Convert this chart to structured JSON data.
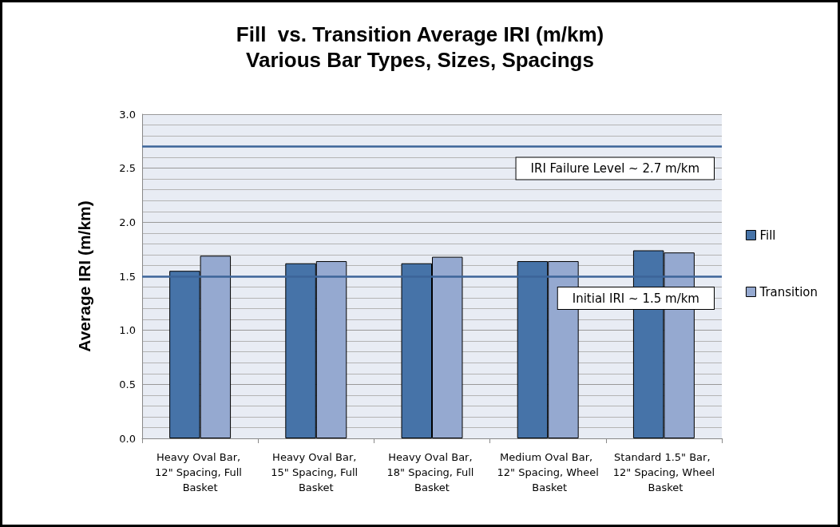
{
  "chart_data": {
    "type": "bar",
    "title": "Fill  vs. Transition Average IRI (m/km)",
    "subtitle": "Various Bar Types, Sizes, Spacings",
    "ylabel": "Average IRI (m/km)",
    "categories": [
      "Heavy Oval Bar, 12\" Spacing, Full Basket",
      "Heavy Oval Bar, 15\" Spacing, Full Basket",
      "Heavy Oval Bar, 18\" Spacing, Full Basket",
      "Medium Oval Bar, 12\" Spacing, Wheel Basket",
      "Standard 1.5\" Bar, 12\" Spacing, Wheel Basket"
    ],
    "series": [
      {
        "name": "Fill",
        "color": "#4673a8",
        "values": [
          1.55,
          1.62,
          1.62,
          1.64,
          1.74
        ]
      },
      {
        "name": "Transition",
        "color": "#95a9d0",
        "values": [
          1.69,
          1.64,
          1.68,
          1.64,
          1.72
        ]
      }
    ],
    "ylim": [
      0,
      3
    ],
    "yticks": [
      {
        "value": 0,
        "label": "0.0"
      },
      0.5,
      {
        "value": 1,
        "label": "1.0"
      },
      1.5,
      {
        "value": 2,
        "label": "2.0"
      },
      2.5,
      {
        "value": 3,
        "label": "3.0"
      }
    ],
    "ref_lines": [
      {
        "axis": "y",
        "value": 2.7,
        "label": "IRI Failure Level ~ 2.7 m/km",
        "color": "#3c6499"
      },
      {
        "axis": "y",
        "value": 1.5,
        "label": "Initial IRI ~ 1.5 m/km",
        "color": "#3c6499"
      }
    ],
    "grid": "y",
    "legend": "right"
  }
}
